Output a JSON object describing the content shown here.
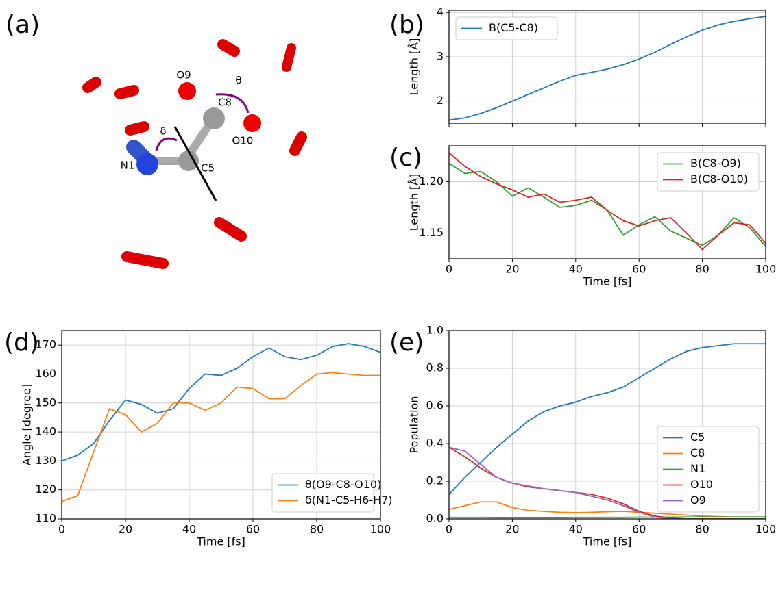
{
  "molecule": {
    "panel_label": "(a)",
    "atom_labels": [
      "O9",
      "C8",
      "θ",
      "δ",
      "N1",
      "C5",
      "O10"
    ]
  },
  "chart_data": [
    {
      "type": "line",
      "panel_label": "(b)",
      "ylabel": "Length [Å]",
      "legend": "upper left",
      "grid": true,
      "show_xtick_labels": false,
      "x": [
        0,
        5,
        10,
        15,
        20,
        25,
        30,
        35,
        40,
        45,
        50,
        55,
        60,
        65,
        70,
        75,
        80,
        85,
        90,
        95,
        100
      ],
      "xlim": [
        0,
        100
      ],
      "xticks": [
        0,
        20,
        40,
        60,
        80,
        100
      ],
      "ylim": [
        1.5,
        4.05
      ],
      "yticks": [
        2,
        3,
        4
      ],
      "series": [
        {
          "name": "B(C5-C8)",
          "color": "#1f77b4",
          "values": [
            1.57,
            1.62,
            1.72,
            1.85,
            2.0,
            2.15,
            2.3,
            2.45,
            2.58,
            2.65,
            2.72,
            2.82,
            2.95,
            3.1,
            3.28,
            3.45,
            3.6,
            3.72,
            3.8,
            3.86,
            3.91
          ]
        }
      ]
    },
    {
      "type": "line",
      "panel_label": "(c)",
      "xlabel": "Time [fs]",
      "ylabel": "Length [Å]",
      "legend": "upper right",
      "grid": true,
      "show_xtick_labels": true,
      "x": [
        0,
        5,
        10,
        15,
        20,
        25,
        30,
        35,
        40,
        45,
        50,
        55,
        60,
        65,
        70,
        75,
        80,
        85,
        90,
        95,
        100
      ],
      "xlim": [
        0,
        100
      ],
      "xticks": [
        0,
        20,
        40,
        60,
        80,
        100
      ],
      "ylim": [
        1.125,
        1.235
      ],
      "yticks": [
        1.15,
        {
          "value": 1.2,
          "label": "1.20"
        }
      ],
      "series": [
        {
          "name": "B(C8-O9)",
          "color": "#2ca02c",
          "values": [
            1.218,
            1.208,
            1.21,
            1.2,
            1.186,
            1.194,
            1.185,
            1.175,
            1.177,
            1.182,
            1.172,
            1.148,
            1.158,
            1.166,
            1.152,
            1.145,
            1.138,
            1.148,
            1.165,
            1.155,
            1.137
          ]
        },
        {
          "name": "B(C8-O10)",
          "color": "#d62728",
          "values": [
            1.228,
            1.215,
            1.205,
            1.198,
            1.192,
            1.185,
            1.188,
            1.18,
            1.182,
            1.185,
            1.172,
            1.162,
            1.157,
            1.162,
            1.165,
            1.15,
            1.134,
            1.148,
            1.16,
            1.158,
            1.14
          ]
        }
      ]
    },
    {
      "type": "line",
      "panel_label": "(d)",
      "xlabel": "Time [fs]",
      "ylabel": "Angle [degree]",
      "legend": "lower right",
      "grid": true,
      "show_xtick_labels": true,
      "x": [
        0,
        5,
        10,
        15,
        20,
        25,
        30,
        35,
        40,
        45,
        50,
        55,
        60,
        65,
        70,
        75,
        80,
        85,
        90,
        95,
        100
      ],
      "xlim": [
        0,
        100
      ],
      "xticks": [
        0,
        20,
        40,
        60,
        80,
        100
      ],
      "ylim": [
        110,
        175
      ],
      "yticks": [
        110,
        120,
        130,
        140,
        150,
        160,
        170
      ],
      "series": [
        {
          "name": "θ(O9-C8-O10)",
          "color": "#1f77b4",
          "values": [
            130,
            132,
            136,
            144,
            151,
            149.5,
            146.5,
            148,
            155,
            160,
            159.5,
            162,
            166,
            169,
            166,
            165,
            166.5,
            169.5,
            170.5,
            169.5,
            167.5
          ]
        },
        {
          "name": "δ(N1-C5-H6-H7)",
          "color": "#ff7f0e",
          "values": [
            116,
            118,
            133,
            148,
            146,
            140,
            143,
            150,
            150,
            147.5,
            150,
            155.5,
            155,
            151.5,
            151.5,
            156,
            160,
            160.5,
            160,
            159.5,
            159.5
          ]
        }
      ]
    },
    {
      "type": "line",
      "panel_label": "(e)",
      "xlabel": "Time [fs]",
      "ylabel": "Population",
      "legend": "lower right",
      "grid": true,
      "show_xtick_labels": true,
      "x": [
        0,
        5,
        10,
        15,
        20,
        25,
        30,
        35,
        40,
        45,
        50,
        55,
        60,
        65,
        70,
        75,
        80,
        85,
        90,
        95,
        100
      ],
      "xlim": [
        0,
        100
      ],
      "xticks": [
        0,
        20,
        40,
        60,
        80,
        100
      ],
      "ylim": [
        0,
        1.0
      ],
      "yticks": [
        {
          "value": 0,
          "label": "0.0"
        },
        0.2,
        0.4,
        0.6,
        0.8,
        {
          "value": 1,
          "label": "1.0"
        }
      ],
      "series": [
        {
          "name": "C5",
          "color": "#1f77b4",
          "values": [
            0.13,
            0.22,
            0.3,
            0.38,
            0.45,
            0.52,
            0.57,
            0.6,
            0.62,
            0.65,
            0.67,
            0.7,
            0.75,
            0.8,
            0.85,
            0.89,
            0.91,
            0.92,
            0.93,
            0.93,
            0.93
          ]
        },
        {
          "name": "C8",
          "color": "#ff7f0e",
          "values": [
            0.05,
            0.07,
            0.09,
            0.09,
            0.06,
            0.045,
            0.04,
            0.035,
            0.033,
            0.035,
            0.038,
            0.04,
            0.035,
            0.03,
            0.025,
            0.02,
            0.015,
            0.012,
            0.01,
            0.01,
            0.01
          ]
        },
        {
          "name": "N1",
          "color": "#2ca02c",
          "values": [
            0.008,
            0.008,
            0.008,
            0.007,
            0.007,
            0.007,
            0.007,
            0.007,
            0.008,
            0.008,
            0.008,
            0.008,
            0.009,
            0.009,
            0.009,
            0.01,
            0.01,
            0.01,
            0.01,
            0.01,
            0.01
          ]
        },
        {
          "name": "O10",
          "color": "#d62728",
          "values": [
            0.38,
            0.33,
            0.27,
            0.22,
            0.19,
            0.17,
            0.16,
            0.15,
            0.14,
            0.13,
            0.11,
            0.08,
            0.04,
            0.015,
            0.005,
            0,
            0,
            0,
            0,
            0,
            0
          ]
        },
        {
          "name": "O9",
          "color": "#9467bd",
          "values": [
            0.38,
            0.36,
            0.29,
            0.22,
            0.19,
            0.175,
            0.16,
            0.15,
            0.14,
            0.12,
            0.1,
            0.07,
            0.035,
            0.01,
            0,
            0,
            0,
            0,
            0,
            0,
            0
          ]
        }
      ]
    }
  ]
}
